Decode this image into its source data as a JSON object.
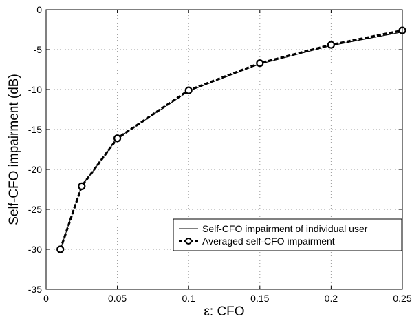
{
  "chart_data": {
    "type": "line",
    "xlabel": "ε: CFO",
    "ylabel": "Self-CFO impairment (dB)",
    "xlim": [
      0,
      0.25
    ],
    "ylim": [
      -35,
      0
    ],
    "x_ticks": [
      0,
      0.05,
      0.1,
      0.15,
      0.2,
      0.25
    ],
    "x_tick_labels": [
      "0",
      "0.05",
      "0.1",
      "0.15",
      "0.2",
      "0.25"
    ],
    "y_ticks": [
      -35,
      -30,
      -25,
      -20,
      -15,
      -10,
      -5,
      0
    ],
    "y_tick_labels": [
      "-35",
      "-30",
      "-25",
      "-20",
      "-15",
      "-10",
      "-5",
      "0"
    ],
    "grid": true,
    "legend_position": "bottom-right",
    "series": [
      {
        "name": "Self-CFO impairment of individual user",
        "style": "thin solid line",
        "color": "#000000",
        "x": [
          0.01,
          0.025,
          0.05,
          0.1,
          0.15,
          0.2,
          0.25
        ],
        "y": [
          -30.0,
          -22.1,
          -16.1,
          -10.2,
          -6.8,
          -4.5,
          -2.8
        ]
      },
      {
        "name": "Averaged self-CFO impairment",
        "style": "thick dashed line with circle markers",
        "color": "#000000",
        "x": [
          0.01,
          0.025,
          0.05,
          0.1,
          0.15,
          0.2,
          0.25
        ],
        "y": [
          -30.0,
          -22.1,
          -16.1,
          -10.1,
          -6.7,
          -4.4,
          -2.6
        ]
      }
    ]
  }
}
